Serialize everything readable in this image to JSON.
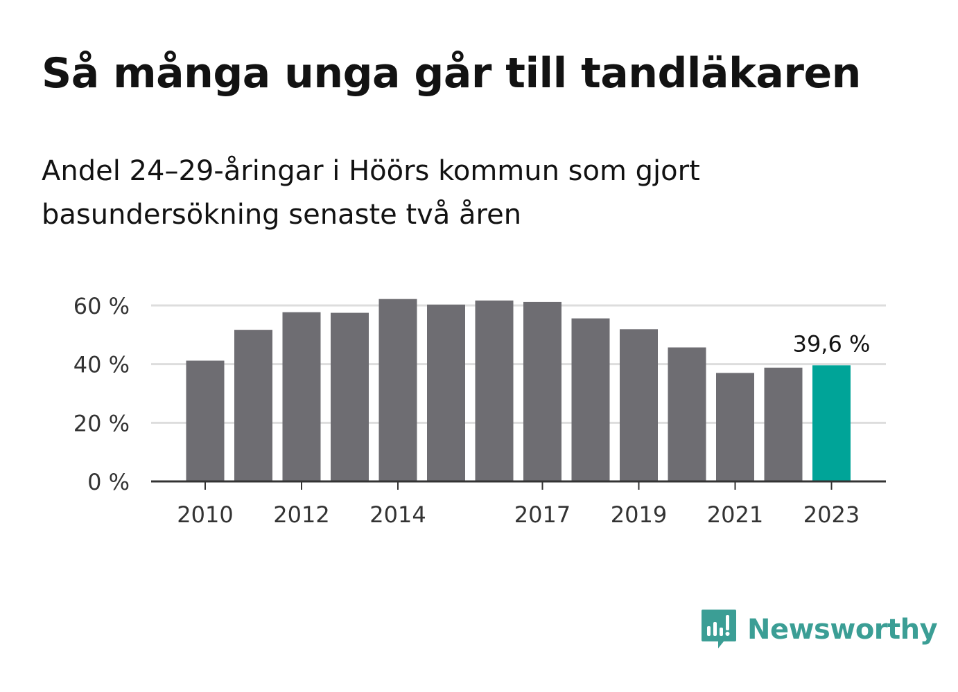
{
  "header": {
    "title": "Så många unga går till tandläkaren",
    "subtitle": "Andel 24–29-åringar i Höörs kommun som gjort basundersökning senaste två åren"
  },
  "brand": {
    "name": "Newsworthy",
    "icon": "newsworthy-logo-icon",
    "color": "#3b9e95"
  },
  "colors": {
    "bar": "#6e6d72",
    "highlight": "#00a498",
    "grid": "#dddddd",
    "axis": "#333333"
  },
  "chart_data": {
    "type": "bar",
    "categories": [
      "2010",
      "2011",
      "2012",
      "2013",
      "2014",
      "2015",
      "2016",
      "2017",
      "2018",
      "2019",
      "2020",
      "2021",
      "2022",
      "2023"
    ],
    "values": [
      41.2,
      51.7,
      57.7,
      57.5,
      62.2,
      60.3,
      61.7,
      61.2,
      55.6,
      51.9,
      45.7,
      37.0,
      38.8,
      39.6
    ],
    "x_tick_labels": [
      "2010",
      "2012",
      "2014",
      "2017",
      "2019",
      "2021",
      "2023"
    ],
    "y_ticks": [
      0,
      20,
      40,
      60
    ],
    "y_tick_labels": [
      "0 %",
      "20 %",
      "40 %",
      "60 %"
    ],
    "ylim": [
      0,
      60
    ],
    "grid": true,
    "highlight_category": "2023",
    "annotation": {
      "category": "2023",
      "label": "39,6 %"
    },
    "title": "Så många unga går till tandläkaren",
    "subtitle": "Andel 24–29-åringar i Höörs kommun som gjort basundersökning senaste två åren",
    "xlabel": "",
    "ylabel": ""
  }
}
